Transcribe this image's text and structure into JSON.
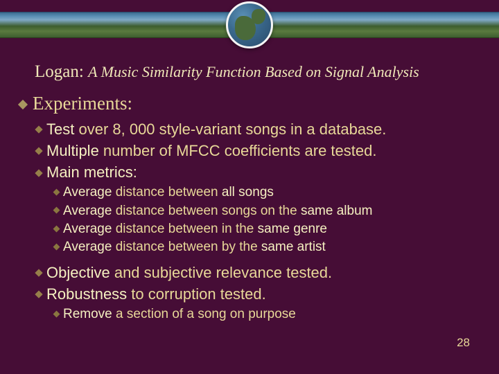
{
  "colors": {
    "background": "#460d36",
    "text": "#e8d898",
    "highlight": "#f5f0c0",
    "bullet": "#a89760"
  },
  "header": {
    "globe_border": "#f5f5f5"
  },
  "title": {
    "main": "Logan: ",
    "sub": "A Music Similarity Function Based on Signal Analysis"
  },
  "lvl1": {
    "experiments": "Experiments:"
  },
  "lvl2": {
    "test_a": "Test",
    "test_b": " over 8, 000 style-variant songs in a database.",
    "mult_a": "Multiple",
    "mult_b": " number of MFCC coefficients are tested.",
    "main_a": "Main",
    "main_b": " ",
    "main_c": "metrics:",
    "obj_a": "Objective",
    "obj_b": " and subjective relevance tested.",
    "rob_a": "Robustness",
    "rob_b": " to corruption tested."
  },
  "lvl3": {
    "m1_a": "Average",
    "m1_b": " distance between ",
    "m1_c": "all songs",
    "m2_a": "Average",
    "m2_b": " distance between songs on the ",
    "m2_c": "same album",
    "m3_a": "Average",
    "m3_b": " distance between in the ",
    "m3_c": "same genre",
    "m4_a": "Average",
    "m4_b": " distance between by the ",
    "m4_c": "same artist",
    "r1_a": "Remove",
    "r1_b": " a section of a song on purpose"
  },
  "slide_number": "28"
}
